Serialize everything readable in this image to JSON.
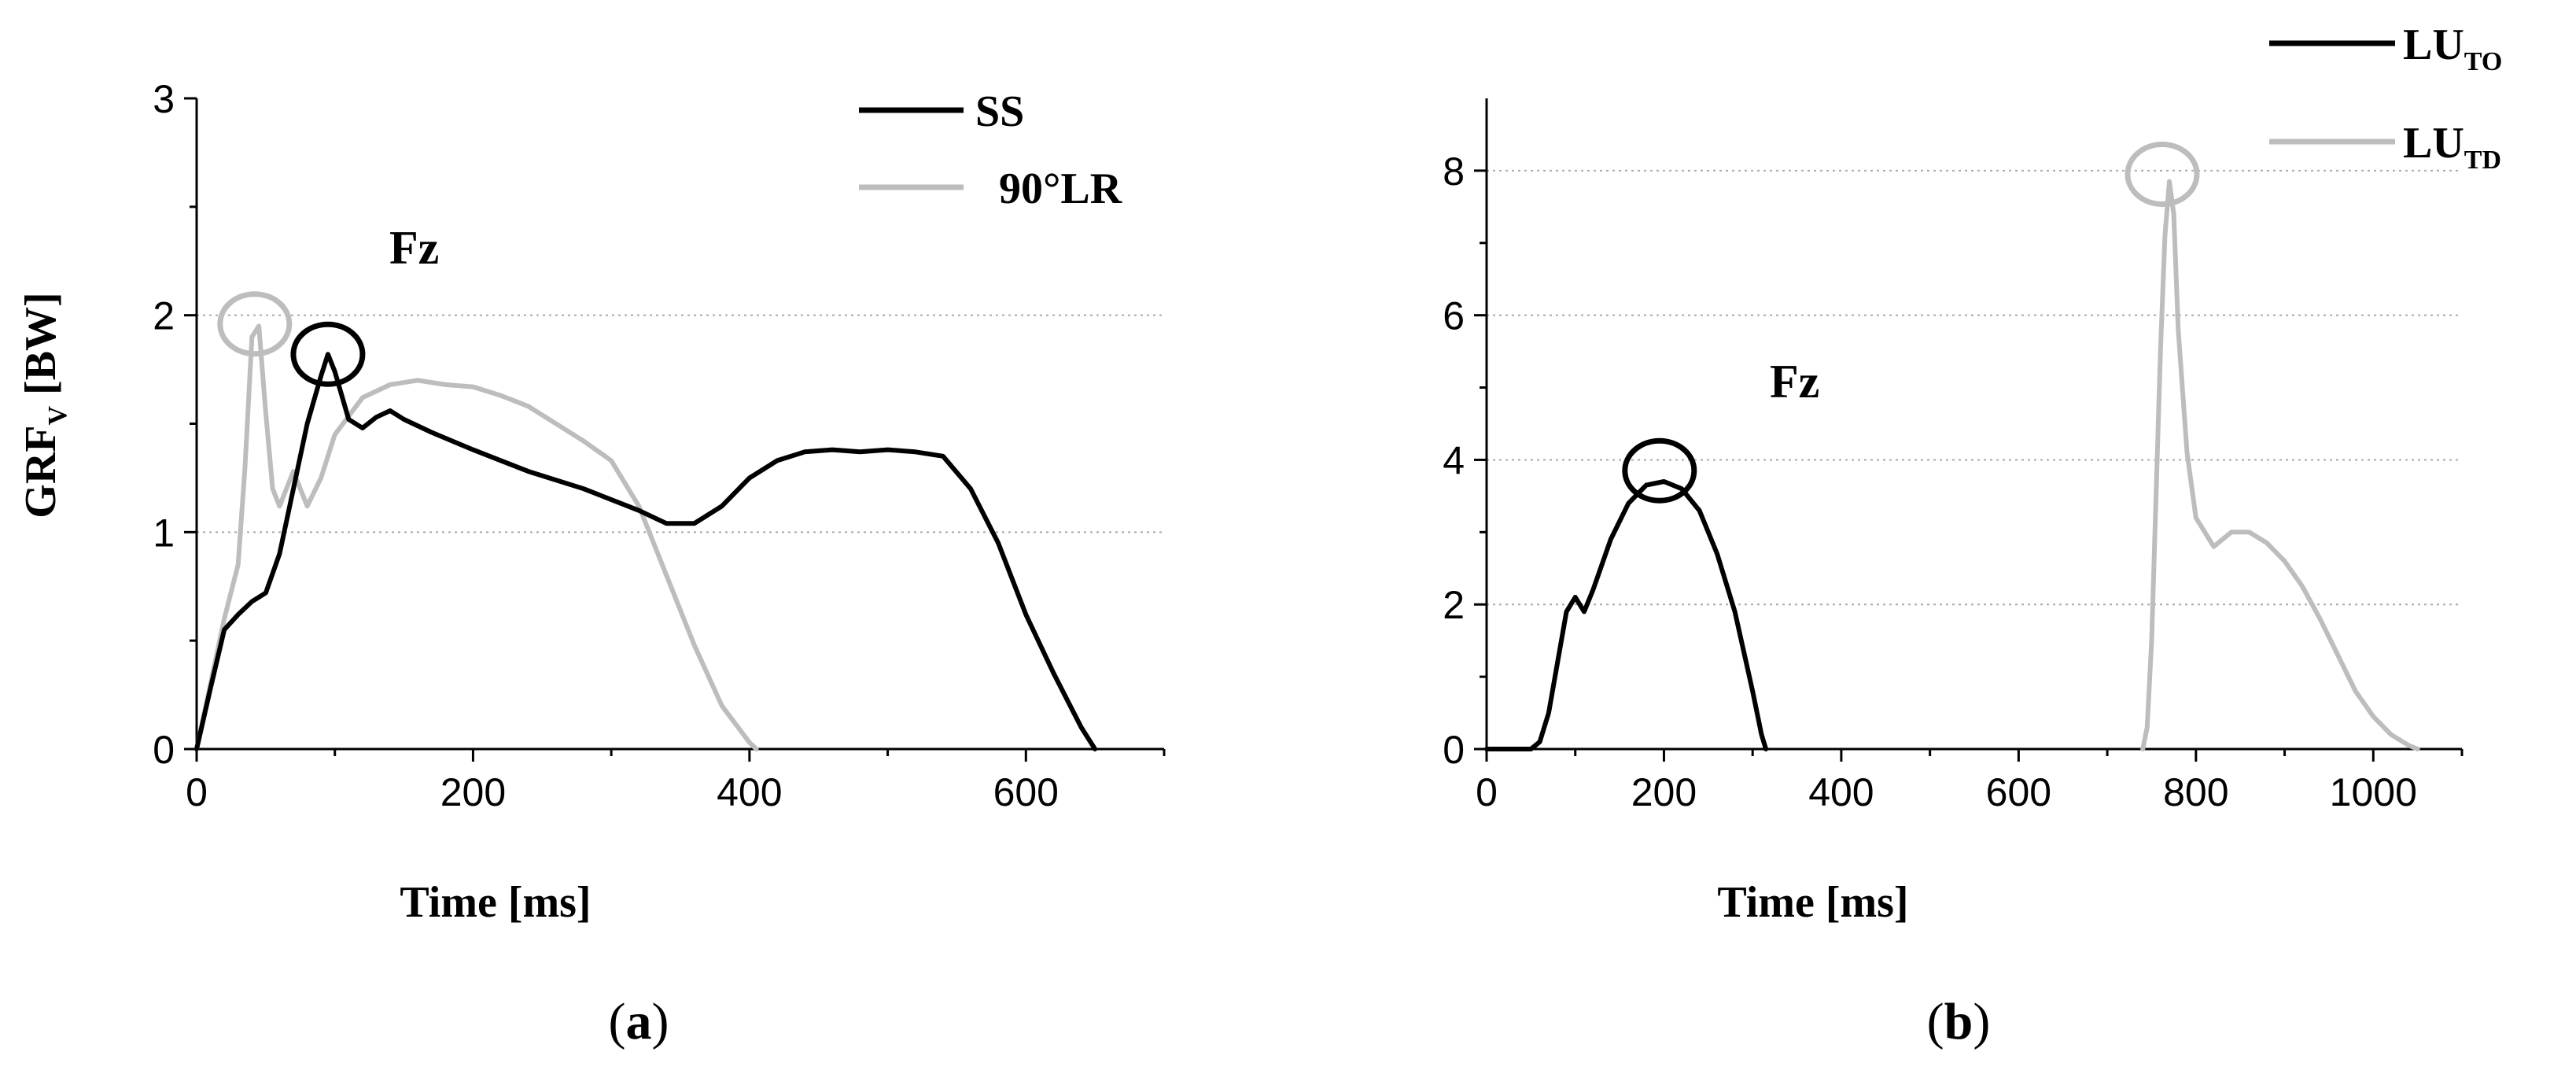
{
  "chart_data": [
    {
      "id": "a",
      "type": "line",
      "caption_open": "(",
      "caption_letter": "a",
      "caption_close": ")",
      "xlabel": "Time  [ms]",
      "ylabel_main": "GRF",
      "ylabel_sub": "V",
      "ylabel_unit": " [BW]",
      "annotation": "Fz",
      "xlim": [
        0,
        700
      ],
      "ylim": [
        0,
        3
      ],
      "xticks": [
        0,
        200,
        400,
        600
      ],
      "yticks": [
        0,
        1,
        2,
        3
      ],
      "grid_y": [
        1,
        2
      ],
      "legend_position": "top-right",
      "series": [
        {
          "name": "SS",
          "sub": "",
          "color": "#000000",
          "x": [
            0,
            10,
            20,
            30,
            40,
            50,
            60,
            70,
            80,
            90,
            95,
            100,
            110,
            120,
            130,
            140,
            150,
            170,
            200,
            240,
            280,
            320,
            340,
            360,
            380,
            400,
            420,
            440,
            460,
            480,
            500,
            520,
            540,
            560,
            580,
            600,
            620,
            640,
            650
          ],
          "y": [
            0,
            0.28,
            0.55,
            0.62,
            0.68,
            0.72,
            0.9,
            1.2,
            1.5,
            1.72,
            1.82,
            1.74,
            1.52,
            1.48,
            1.53,
            1.56,
            1.52,
            1.46,
            1.38,
            1.28,
            1.2,
            1.1,
            1.04,
            1.04,
            1.12,
            1.25,
            1.33,
            1.37,
            1.38,
            1.37,
            1.38,
            1.37,
            1.35,
            1.2,
            0.95,
            0.62,
            0.35,
            0.1,
            0
          ]
        },
        {
          "name": "90°LR",
          "sub": "",
          "color": "#bdbdbd",
          "x": [
            0,
            10,
            20,
            30,
            35,
            40,
            45,
            50,
            55,
            60,
            70,
            80,
            90,
            100,
            120,
            140,
            160,
            180,
            200,
            220,
            240,
            260,
            280,
            300,
            320,
            340,
            360,
            380,
            400,
            405
          ],
          "y": [
            0,
            0.3,
            0.6,
            0.85,
            1.3,
            1.9,
            1.95,
            1.55,
            1.2,
            1.12,
            1.28,
            1.12,
            1.25,
            1.45,
            1.62,
            1.68,
            1.7,
            1.68,
            1.67,
            1.63,
            1.58,
            1.5,
            1.42,
            1.33,
            1.12,
            0.8,
            0.48,
            0.2,
            0.03,
            0
          ]
        }
      ],
      "markers": [
        {
          "series": "90°LR",
          "x": 42,
          "y": 1.96,
          "color": "#bdbdbd"
        },
        {
          "series": "SS",
          "x": 95,
          "y": 1.82,
          "color": "#000000"
        }
      ]
    },
    {
      "id": "b",
      "type": "line",
      "caption_open": "(",
      "caption_letter": "b",
      "caption_close": ")",
      "xlabel": "Time  [ms]",
      "annotation": "Fz",
      "xlim": [
        0,
        1100
      ],
      "ylim": [
        0,
        9
      ],
      "xticks": [
        0,
        200,
        400,
        600,
        800,
        1000
      ],
      "yticks": [
        0,
        2,
        4,
        6,
        8
      ],
      "grid_y": [
        2,
        4,
        6,
        8
      ],
      "legend_position": "top-right",
      "series": [
        {
          "name": "LU",
          "sub": "TO",
          "color": "#000000",
          "x": [
            0,
            50,
            60,
            70,
            80,
            90,
            100,
            110,
            120,
            140,
            160,
            180,
            200,
            220,
            240,
            260,
            280,
            300,
            310,
            315
          ],
          "y": [
            0,
            0,
            0.1,
            0.5,
            1.2,
            1.9,
            2.1,
            1.9,
            2.2,
            2.9,
            3.4,
            3.65,
            3.7,
            3.6,
            3.3,
            2.7,
            1.9,
            0.8,
            0.2,
            0
          ]
        },
        {
          "name": "LU",
          "sub": "TD",
          "color": "#bdbdbd",
          "x": [
            740,
            745,
            750,
            755,
            760,
            765,
            770,
            775,
            780,
            790,
            800,
            820,
            840,
            860,
            880,
            900,
            920,
            940,
            960,
            980,
            1000,
            1020,
            1040,
            1050
          ],
          "y": [
            0,
            0.3,
            1.5,
            3.5,
            5.5,
            7.1,
            7.85,
            7.4,
            5.8,
            4.1,
            3.2,
            2.8,
            3.0,
            3.0,
            2.85,
            2.6,
            2.25,
            1.8,
            1.3,
            0.8,
            0.45,
            0.2,
            0.05,
            0
          ]
        }
      ],
      "markers": [
        {
          "series": "LU TO",
          "x": 195,
          "y": 3.85,
          "color": "#000000"
        },
        {
          "series": "LU TD",
          "x": 762,
          "y": 7.95,
          "color": "#bdbdbd"
        }
      ]
    }
  ]
}
